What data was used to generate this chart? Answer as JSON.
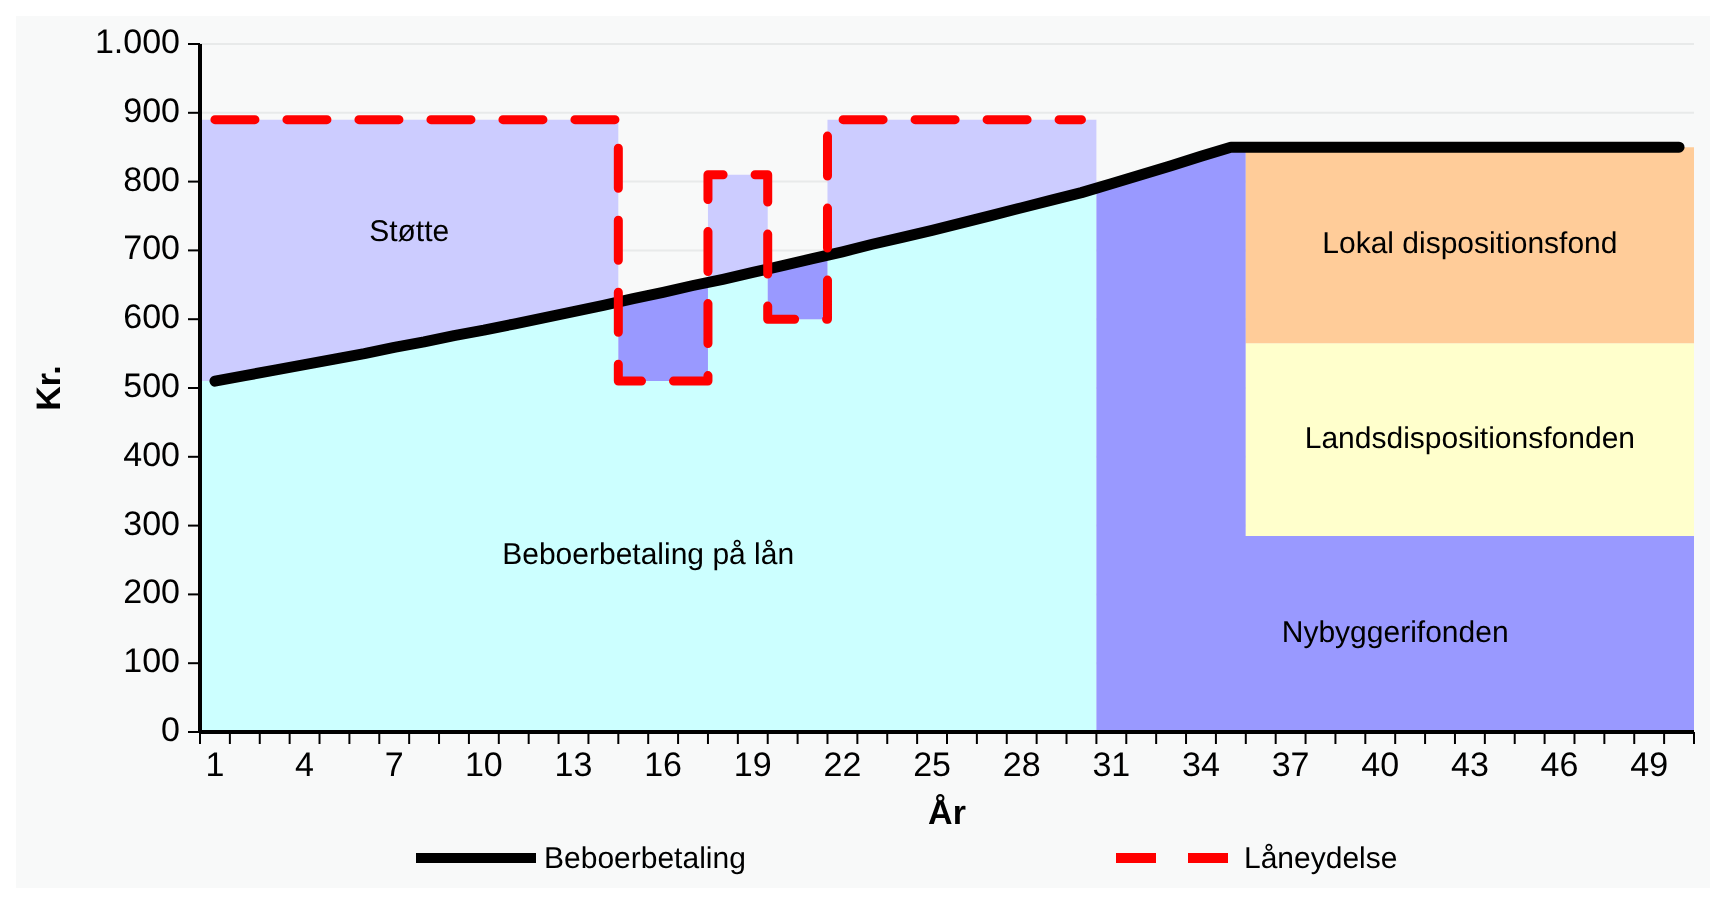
{
  "chart_data": {
    "type": "area",
    "stacked": true,
    "xlabel": "År",
    "ylabel": "Kr.",
    "x": [
      0.5,
      1.5,
      1.5,
      2.5,
      2.5,
      3.5,
      3.5,
      4.5,
      4.5,
      5.5,
      5.5,
      6.5,
      6.5,
      7.5,
      7.5,
      8.5,
      8.5,
      9.5,
      9.5,
      10.5,
      10.5,
      11.5,
      11.5,
      12.5,
      12.5,
      13.5,
      13.5,
      14.5,
      14.5,
      15.5,
      15.5,
      16.5,
      16.5,
      17.5,
      17.5,
      18.5,
      18.5,
      19.5,
      19.5,
      20.5,
      20.5,
      21.5,
      21.5,
      22.5,
      22.5,
      23.5,
      23.5,
      24.5,
      24.5,
      25.5,
      25.5,
      26.5,
      26.5,
      27.5,
      27.5,
      28.5,
      28.5,
      29.5,
      29.5,
      30.5,
      30.5,
      31.5,
      31.5,
      32.5,
      32.5,
      33.5,
      33.5,
      34.5,
      34.5,
      35.5,
      35.5,
      36.5,
      36.5,
      37.5,
      37.5,
      38.5,
      38.5,
      39.5,
      39.5,
      40.5,
      40.5,
      41.5,
      41.5,
      42.5,
      42.5,
      43.5,
      43.5,
      44.5,
      44.5,
      45.5,
      45.5,
      46.5,
      46.5,
      47.5,
      47.5,
      48.5,
      48.5,
      49.5,
      49.5,
      50.5
    ],
    "xlim": [
      0.5,
      50.5
    ],
    "xticks": [
      {
        "value": 0.5,
        "label": null
      },
      1,
      {
        "value": 1.5,
        "label": null
      },
      {
        "value": 2.5,
        "label": null
      },
      {
        "value": 3.5,
        "label": null
      },
      4,
      {
        "value": 4.5,
        "label": null
      },
      {
        "value": 5.5,
        "label": null
      },
      {
        "value": 6.5,
        "label": null
      },
      7,
      {
        "value": 7.5,
        "label": null
      },
      {
        "value": 8.5,
        "label": null
      },
      {
        "value": 9.5,
        "label": null
      },
      10,
      {
        "value": 10.5,
        "label": null
      },
      {
        "value": 11.5,
        "label": null
      },
      {
        "value": 12.5,
        "label": null
      },
      13,
      {
        "value": 13.5,
        "label": null
      },
      {
        "value": 14.5,
        "label": null
      },
      {
        "value": 15.5,
        "label": null
      },
      16,
      {
        "value": 16.5,
        "label": null
      },
      {
        "value": 17.5,
        "label": null
      },
      {
        "value": 18.5,
        "label": null
      },
      19,
      {
        "value": 19.5,
        "label": null
      },
      {
        "value": 20.5,
        "label": null
      },
      {
        "value": 21.5,
        "label": null
      },
      22,
      {
        "value": 22.5,
        "label": null
      },
      {
        "value": 23.5,
        "label": null
      },
      {
        "value": 24.5,
        "label": null
      },
      25,
      {
        "value": 25.5,
        "label": null
      },
      {
        "value": 26.5,
        "label": null
      },
      {
        "value": 27.5,
        "label": null
      },
      28,
      {
        "value": 28.5,
        "label": null
      },
      {
        "value": 29.5,
        "label": null
      },
      {
        "value": 30.5,
        "label": null
      },
      31,
      {
        "value": 31.5,
        "label": null
      },
      {
        "value": 32.5,
        "label": null
      },
      {
        "value": 33.5,
        "label": null
      },
      34,
      {
        "value": 34.5,
        "label": null
      },
      {
        "value": 35.5,
        "label": null
      },
      {
        "value": 36.5,
        "label": null
      },
      37,
      {
        "value": 37.5,
        "label": null
      },
      {
        "value": 38.5,
        "label": null
      },
      {
        "value": 39.5,
        "label": null
      },
      40,
      {
        "value": 40.5,
        "label": null
      },
      {
        "value": 41.5,
        "label": null
      },
      {
        "value": 42.5,
        "label": null
      },
      43,
      {
        "value": 43.5,
        "label": null
      },
      {
        "value": 44.5,
        "label": null
      },
      {
        "value": 45.5,
        "label": null
      },
      46,
      {
        "value": 46.5,
        "label": null
      },
      {
        "value": 47.5,
        "label": null
      },
      {
        "value": 48.5,
        "label": null
      },
      49,
      {
        "value": 49.5,
        "label": null
      },
      {
        "value": 50.5,
        "label": null
      }
    ],
    "ylim": [
      0,
      1000
    ],
    "yticks": [
      0,
      100,
      200,
      300,
      400,
      500,
      600,
      700,
      800,
      900,
      {
        "value": 1000,
        "label": "1.000"
      }
    ],
    "grid": "y",
    "legend": "bottom",
    "series": [
      {
        "name": "Beboerbetaling på lån",
        "color": "#ccffff",
        "values": [
          510,
          510,
          518,
          518,
          526,
          526,
          534,
          534,
          542,
          542,
          550,
          550,
          559,
          559,
          567,
          567,
          576,
          576,
          584,
          584,
          593,
          593,
          602,
          602,
          611,
          611,
          620,
          620,
          510,
          510,
          510,
          510,
          510,
          510,
          658,
          658,
          668,
          668,
          600,
          600,
          600,
          600,
          698,
          698,
          709,
          709,
          719,
          719,
          729,
          729,
          740,
          740,
          751,
          751,
          762,
          762,
          773,
          773,
          784,
          784,
          null,
          null,
          null,
          null,
          null,
          null,
          null,
          null,
          null,
          null,
          null,
          null,
          null,
          null,
          null,
          null,
          null,
          null,
          null,
          null,
          null,
          null,
          null,
          null,
          null,
          null,
          null,
          null,
          null,
          null,
          null,
          null,
          null,
          null,
          null,
          null,
          null,
          null,
          null,
          null
        ]
      },
      {
        "name": "Nybyggerifonden",
        "color": "#9999ff",
        "values": [
          null,
          null,
          null,
          null,
          null,
          null,
          null,
          null,
          null,
          null,
          null,
          null,
          null,
          null,
          null,
          null,
          null,
          null,
          null,
          null,
          null,
          null,
          null,
          null,
          null,
          null,
          null,
          null,
          120,
          120,
          129,
          129,
          139,
          139,
          null,
          null,
          null,
          null,
          78,
          78,
          88,
          88,
          null,
          null,
          null,
          null,
          null,
          null,
          null,
          null,
          null,
          null,
          null,
          null,
          null,
          null,
          null,
          null,
          null,
          null,
          797,
          797,
          810,
          810,
          823,
          823,
          837,
          837,
          850,
          850,
          285,
          285,
          285,
          285,
          285,
          285,
          285,
          285,
          285,
          285,
          285,
          285,
          285,
          285,
          285,
          285,
          285,
          285,
          285,
          285,
          285,
          285,
          285,
          285,
          285,
          285,
          285,
          285,
          285,
          285
        ]
      },
      {
        "name": "Landsdispositionsfonden",
        "color": "#ffffcc",
        "values": [
          null,
          null,
          null,
          null,
          null,
          null,
          null,
          null,
          null,
          null,
          null,
          null,
          null,
          null,
          null,
          null,
          null,
          null,
          null,
          null,
          null,
          null,
          null,
          null,
          null,
          null,
          null,
          null,
          null,
          null,
          null,
          null,
          null,
          null,
          null,
          null,
          null,
          null,
          null,
          null,
          null,
          null,
          null,
          null,
          null,
          null,
          null,
          null,
          null,
          null,
          null,
          null,
          null,
          null,
          null,
          null,
          null,
          null,
          null,
          null,
          null,
          null,
          null,
          null,
          null,
          null,
          null,
          null,
          null,
          null,
          280,
          280,
          280,
          280,
          280,
          280,
          280,
          280,
          280,
          280,
          280,
          280,
          280,
          280,
          280,
          280,
          280,
          280,
          280,
          280,
          280,
          280,
          280,
          280,
          280,
          280,
          280,
          280,
          280,
          280
        ]
      },
      {
        "name": "Lokal dispositionsfond",
        "color": "#ffcc99",
        "values": [
          null,
          null,
          null,
          null,
          null,
          null,
          null,
          null,
          null,
          null,
          null,
          null,
          null,
          null,
          null,
          null,
          null,
          null,
          null,
          null,
          null,
          null,
          null,
          null,
          null,
          null,
          null,
          null,
          null,
          null,
          null,
          null,
          null,
          null,
          null,
          null,
          null,
          null,
          null,
          null,
          null,
          null,
          null,
          null,
          null,
          null,
          null,
          null,
          null,
          null,
          null,
          null,
          null,
          null,
          null,
          null,
          null,
          null,
          null,
          null,
          null,
          null,
          null,
          null,
          null,
          null,
          null,
          null,
          null,
          null,
          285,
          285,
          285,
          285,
          285,
          285,
          285,
          285,
          285,
          285,
          285,
          285,
          285,
          285,
          285,
          285,
          285,
          285,
          285,
          285,
          285,
          285,
          285,
          285,
          285,
          285,
          285,
          285,
          285,
          285
        ]
      },
      {
        "name": "Støtte",
        "color": "#ccccff",
        "values": [
          380,
          380,
          372,
          372,
          364,
          364,
          356,
          356,
          348,
          348,
          340,
          340,
          331,
          331,
          323,
          323,
          314,
          314,
          306,
          306,
          297,
          297,
          288,
          288,
          279,
          279,
          270,
          270,
          null,
          null,
          null,
          null,
          null,
          null,
          152,
          152,
          142,
          142,
          null,
          null,
          null,
          null,
          192,
          192,
          181,
          181,
          171,
          171,
          161,
          161,
          150,
          150,
          139,
          139,
          128,
          128,
          117,
          117,
          106,
          106,
          null,
          null,
          null,
          null,
          null,
          null,
          null,
          null,
          null,
          null,
          null,
          null,
          null,
          null,
          null,
          null,
          null,
          null,
          null,
          null,
          null,
          null,
          null,
          null,
          null,
          null,
          null,
          null,
          null,
          null,
          null,
          null,
          null,
          null,
          null,
          null,
          null,
          null,
          null,
          null
        ]
      },
      {
        "name": "Beboerbetaling",
        "type": "line",
        "color": "#000000",
        "line_style": "solid",
        "x": [
          1,
          2,
          3,
          4,
          5,
          6,
          7,
          8,
          9,
          10,
          11,
          12,
          13,
          14,
          15,
          16,
          17,
          18,
          19,
          20,
          21,
          22,
          23,
          24,
          25,
          26,
          27,
          28,
          29,
          30,
          31,
          32,
          33,
          34,
          35,
          36,
          37,
          38,
          39,
          40,
          41,
          42,
          43,
          44,
          45,
          46,
          47,
          48,
          49,
          50
        ],
        "values": [
          510,
          518,
          526,
          534,
          542,
          550,
          559,
          567,
          576,
          584,
          593,
          602,
          611,
          620,
          630,
          639,
          649,
          658,
          668,
          678,
          688,
          698,
          709,
          719,
          729,
          740,
          751,
          762,
          773,
          784,
          797,
          810,
          823,
          837,
          850,
          850,
          850,
          850,
          850,
          850,
          850,
          850,
          850,
          850,
          850,
          850,
          850,
          850,
          850,
          850
        ]
      },
      {
        "name": "Låneydelse",
        "type": "line",
        "color": "#ff0000",
        "line_style": "dashed",
        "x": [
          1,
          14.5,
          14.5,
          17.5,
          17.5,
          19.5,
          19.5,
          21.5,
          21.5,
          30
        ],
        "values": [
          890,
          890,
          510,
          510,
          810,
          810,
          600,
          600,
          890,
          890
        ]
      }
    ]
  }
}
